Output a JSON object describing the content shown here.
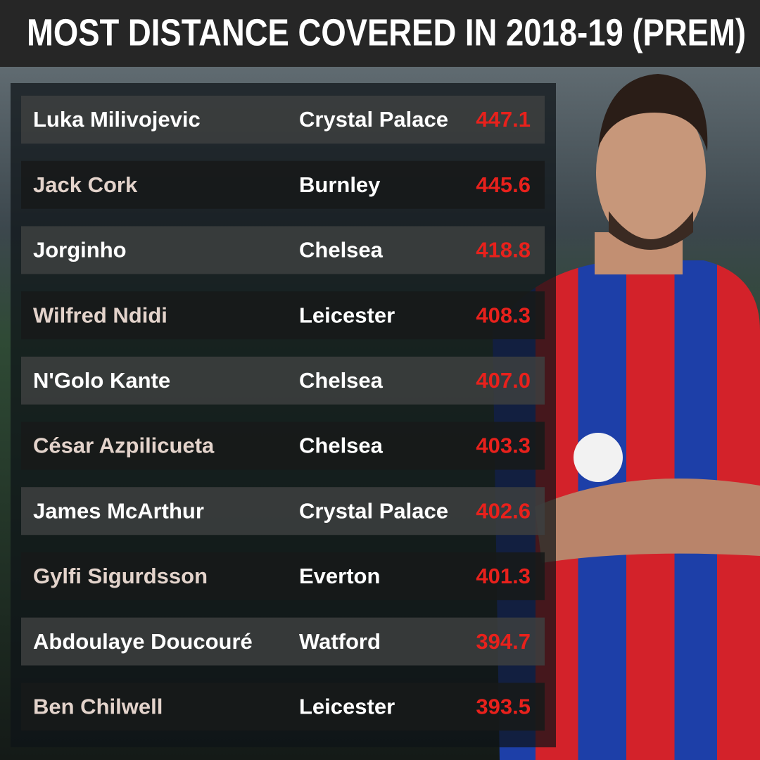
{
  "header": {
    "title": "MOST DISTANCE COVERED IN 2018-19 (PREM)"
  },
  "table": {
    "rows": [
      [
        "Luka Milivojevic",
        "Crystal Palace",
        "447.1"
      ],
      [
        "Jack Cork",
        "Burnley",
        "445.6"
      ],
      [
        "Jorginho",
        "Chelsea",
        "418.8"
      ],
      [
        "Wilfred Ndidi",
        "Leicester",
        "408.3"
      ],
      [
        "N'Golo Kante",
        "Chelsea",
        "407.0"
      ],
      [
        "César Azpilicueta",
        "Chelsea",
        "403.3"
      ],
      [
        "James McArthur",
        "Crystal Palace",
        "402.6"
      ],
      [
        "Gylfi Sigurdsson",
        "Everton",
        "401.3"
      ],
      [
        "Abdoulaye Doucouré",
        "Watford",
        "394.7"
      ],
      [
        "Ben Chilwell",
        "Leicester",
        "393.5"
      ]
    ]
  }
}
